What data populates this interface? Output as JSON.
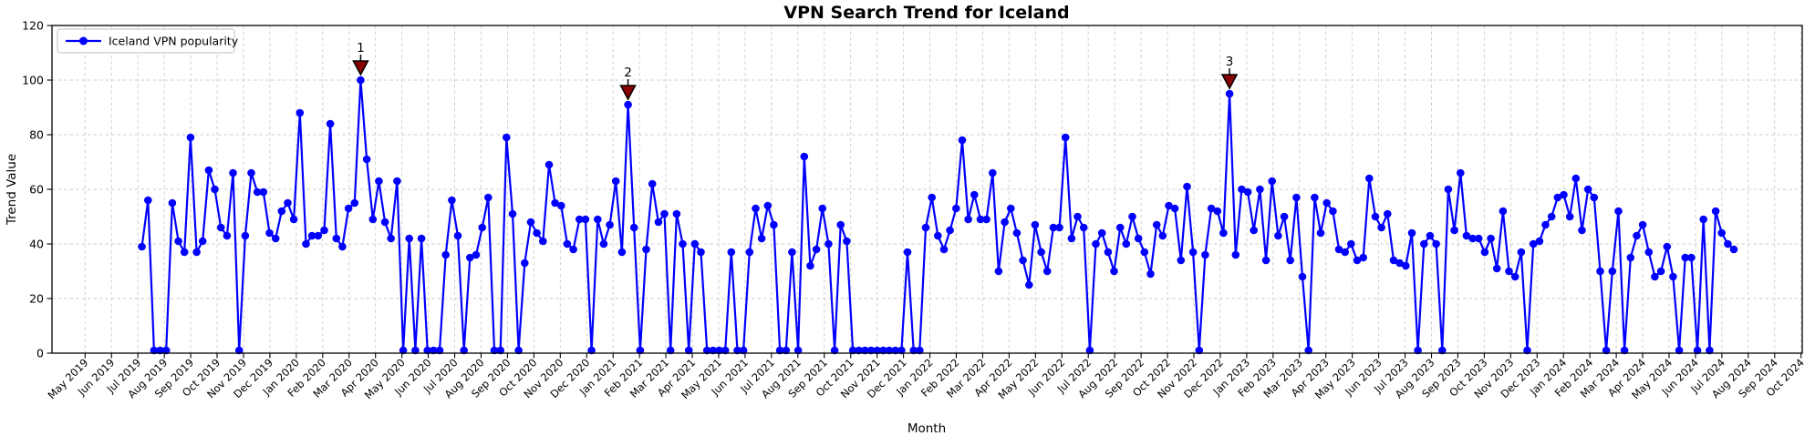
{
  "figure": {
    "title": "VPN Search Trend for Iceland",
    "xlabel": "Month",
    "ylabel": "Trend Value",
    "legend_label": "Iceland VPN popularity"
  },
  "chart_data": {
    "type": "line",
    "title": "VPN Search Trend for Iceland",
    "xlabel": "Month",
    "ylabel": "Trend Value",
    "legend_entries": [
      "Iceland VPN popularity"
    ],
    "legend_position": "upper left",
    "grid": true,
    "ylim": [
      0,
      120
    ],
    "yticks": [
      0,
      20,
      40,
      60,
      80,
      100,
      120
    ],
    "x_start_date": "2019-07-07",
    "x_step_days": 7,
    "x_tick_labels": [
      "May 2019",
      "Jun 2019",
      "Jul 2019",
      "Aug 2019",
      "Sep 2019",
      "Oct 2019",
      "Nov 2019",
      "Dec 2019",
      "Jan 2020",
      "Feb 2020",
      "Mar 2020",
      "Apr 2020",
      "May 2020",
      "Jun 2020",
      "Jul 2020",
      "Aug 2020",
      "Sep 2020",
      "Oct 2020",
      "Nov 2020",
      "Dec 2020",
      "Jan 2021",
      "Feb 2021",
      "Mar 2021",
      "Apr 2021",
      "May 2021",
      "Jun 2021",
      "Jul 2021",
      "Aug 2021",
      "Sep 2021",
      "Oct 2021",
      "Nov 2021",
      "Dec 2021",
      "Jan 2022",
      "Feb 2022",
      "Mar 2022",
      "Apr 2022",
      "May 2022",
      "Jun 2022",
      "Jul 2022",
      "Aug 2022",
      "Sep 2022",
      "Oct 2022",
      "Nov 2022",
      "Dec 2022",
      "Jan 2023",
      "Feb 2023",
      "Mar 2023",
      "Apr 2023",
      "May 2023",
      "Jun 2023",
      "Jul 2023",
      "Aug 2023",
      "Sep 2023",
      "Oct 2023",
      "Nov 2023",
      "Dec 2023",
      "Jan 2024",
      "Feb 2024",
      "Mar 2024",
      "Apr 2024",
      "May 2024",
      "Jun 2024",
      "Jul 2024",
      "Aug 2024",
      "Sep 2024",
      "Oct 2024"
    ],
    "series": [
      {
        "name": "Iceland VPN popularity",
        "color": "#0000ff",
        "marker": "circle",
        "values": [
          39,
          56,
          1,
          1,
          1,
          55,
          41,
          37,
          79,
          37,
          41,
          67,
          60,
          46,
          43,
          66,
          1,
          43,
          66,
          59,
          59,
          44,
          42,
          52,
          55,
          49,
          88,
          40,
          43,
          43,
          45,
          84,
          42,
          39,
          53,
          55,
          100,
          71,
          49,
          63,
          48,
          42,
          63,
          1,
          42,
          1,
          42,
          1,
          1,
          1,
          36,
          56,
          43,
          1,
          35,
          36,
          46,
          57,
          1,
          1,
          79,
          51,
          1,
          33,
          48,
          44,
          41,
          69,
          55,
          54,
          40,
          38,
          49,
          49,
          1,
          49,
          40,
          47,
          63,
          37,
          91,
          46,
          1,
          38,
          62,
          48,
          51,
          1,
          51,
          40,
          1,
          40,
          37,
          1,
          1,
          1,
          1,
          37,
          1,
          1,
          37,
          53,
          42,
          54,
          47,
          1,
          1,
          37,
          1,
          72,
          32,
          38,
          53,
          40,
          1,
          47,
          41,
          1,
          1,
          1,
          1,
          1,
          1,
          1,
          1,
          1,
          37,
          1,
          1,
          46,
          57,
          43,
          38,
          45,
          53,
          78,
          49,
          58,
          49,
          49,
          66,
          30,
          48,
          53,
          44,
          34,
          25,
          47,
          37,
          30,
          46,
          46,
          79,
          42,
          50,
          46,
          1,
          40,
          44,
          37,
          30,
          46,
          40,
          50,
          42,
          37,
          29,
          47,
          43,
          54,
          53,
          34,
          61,
          37,
          1,
          36,
          53,
          52,
          44,
          95,
          36,
          60,
          59,
          45,
          60,
          34,
          63,
          43,
          50,
          34,
          57,
          28,
          1,
          57,
          44,
          55,
          52,
          38,
          37,
          40,
          34,
          35,
          64,
          50,
          46,
          51,
          34,
          33,
          32,
          44,
          1,
          40,
          43,
          40,
          1,
          60,
          45,
          66,
          43,
          42,
          42,
          37,
          42,
          31,
          52,
          30,
          28,
          37,
          1,
          40,
          41,
          47,
          50,
          57,
          58,
          50,
          64,
          45,
          60,
          57,
          30,
          1,
          30,
          52,
          1,
          35,
          43,
          47,
          37,
          28,
          30,
          39,
          28,
          1,
          35,
          35,
          1,
          49,
          1,
          52,
          44,
          40,
          38
        ]
      }
    ],
    "annotations": [
      {
        "label": "1",
        "week_index": 36,
        "value": 100
      },
      {
        "label": "2",
        "week_index": 80,
        "value": 91
      },
      {
        "label": "3",
        "week_index": 179,
        "value": 95
      }
    ],
    "colors": {
      "line": "#0000ff",
      "annotation_marker": "#8b0000",
      "annotation_text": "#8b0000",
      "grid": "#cccccc",
      "background": "#ffffff",
      "text": "#000000"
    }
  }
}
